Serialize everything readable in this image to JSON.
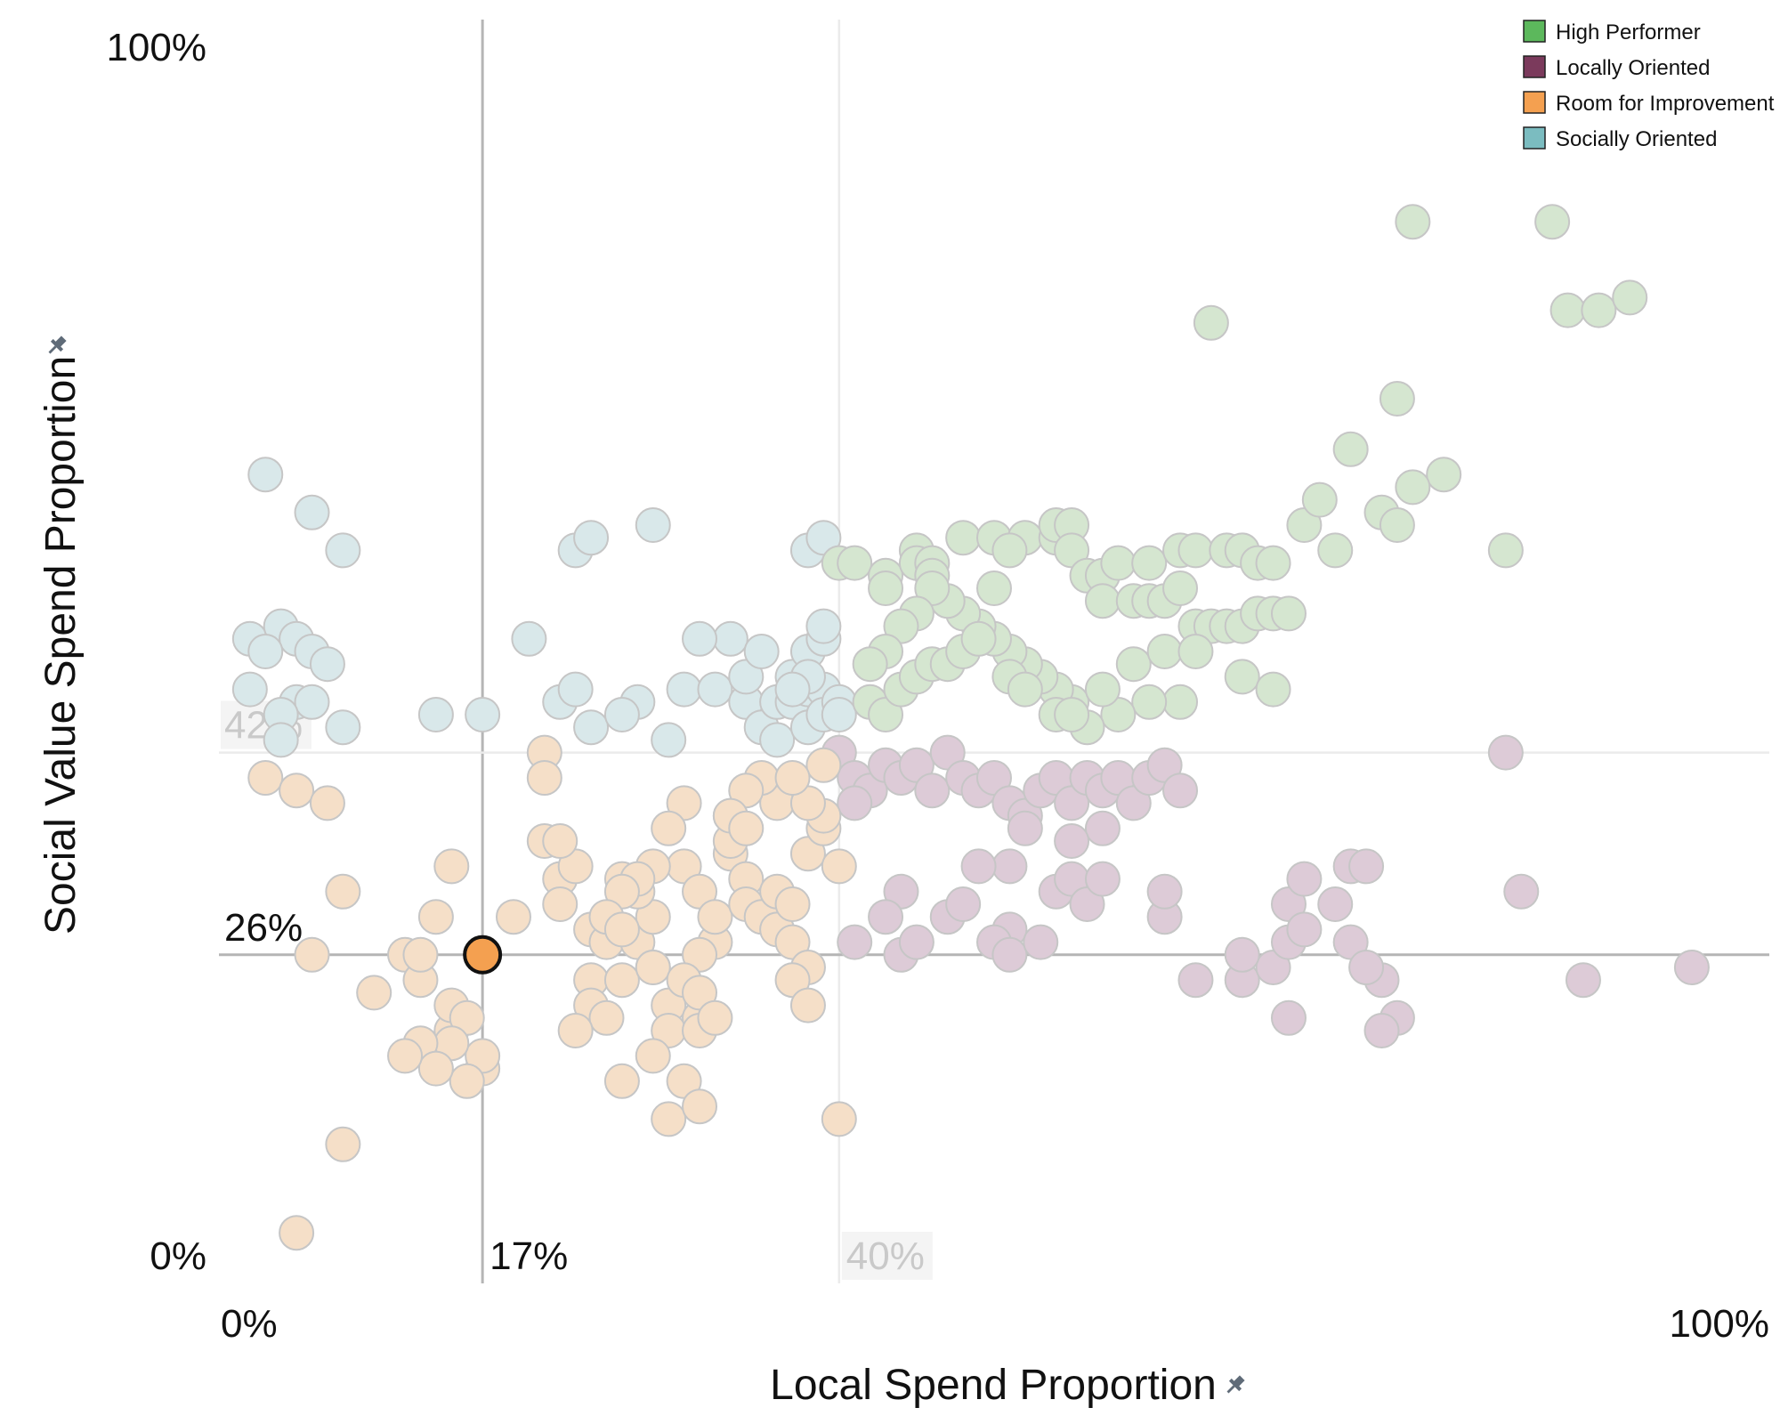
{
  "chart_data": {
    "type": "scatter",
    "xlabel": "Local Spend Proportion",
    "ylabel": "Social Value Spend Proportion",
    "xlim": [
      0,
      100
    ],
    "ylim": [
      0,
      100
    ],
    "x_ticks": [
      "0%",
      "100%"
    ],
    "y_ticks": [
      "0%",
      "100%"
    ],
    "pin_icon": "pin-icon",
    "reference_lines": [
      {
        "axis": "x",
        "value": 17,
        "label": "17%",
        "emphasis": "strong"
      },
      {
        "axis": "x",
        "value": 40,
        "label": "40%",
        "emphasis": "faint"
      },
      {
        "axis": "y",
        "value": 26,
        "label": "26%",
        "emphasis": "strong"
      },
      {
        "axis": "y",
        "value": 42,
        "label": "42%",
        "emphasis": "faint"
      }
    ],
    "highlight": {
      "x": 17,
      "y": 26,
      "category": "Room for Improvement"
    },
    "legend_position": "top-right",
    "categories": [
      {
        "name": "High Performer",
        "color": "#5cb85c",
        "faded": "#d5e6d0"
      },
      {
        "name": "Locally Oriented",
        "color": "#7b3a5c",
        "faded": "#ddcbd7"
      },
      {
        "name": "Room for Improvement",
        "color": "#f4a050",
        "faded": "#f5dfc8"
      },
      {
        "name": "Socially Oriented",
        "color": "#7bbcc0",
        "faded": "#d9e8ea"
      }
    ],
    "series": [
      {
        "name": "Socially Oriented",
        "points": [
          [
            3,
            64
          ],
          [
            6,
            61
          ],
          [
            8,
            58
          ],
          [
            2,
            51
          ],
          [
            4,
            52
          ],
          [
            5,
            51
          ],
          [
            3,
            50
          ],
          [
            6,
            50
          ],
          [
            7,
            49
          ],
          [
            2,
            47
          ],
          [
            5,
            46
          ],
          [
            6,
            46
          ],
          [
            4,
            45
          ],
          [
            8,
            44
          ],
          [
            4,
            43
          ],
          [
            14,
            45
          ],
          [
            17,
            45
          ],
          [
            20,
            51
          ],
          [
            22,
            46
          ],
          [
            23,
            47
          ],
          [
            24,
            44
          ],
          [
            27,
            46
          ],
          [
            23,
            58
          ],
          [
            24,
            59
          ],
          [
            28,
            60
          ],
          [
            26,
            45
          ],
          [
            30,
            47
          ],
          [
            29,
            43
          ],
          [
            32,
            47
          ],
          [
            33,
            51
          ],
          [
            31,
            51
          ],
          [
            34,
            46
          ],
          [
            34,
            48
          ],
          [
            35,
            50
          ],
          [
            35,
            44
          ],
          [
            36,
            43
          ],
          [
            36,
            46
          ],
          [
            37,
            46
          ],
          [
            37,
            48
          ],
          [
            38,
            47
          ],
          [
            39,
            47
          ],
          [
            38,
            44
          ],
          [
            39,
            45
          ],
          [
            40,
            46
          ],
          [
            40,
            45
          ],
          [
            38,
            50
          ],
          [
            39,
            51
          ],
          [
            39,
            52
          ],
          [
            38,
            58
          ],
          [
            39,
            59
          ],
          [
            38,
            48
          ],
          [
            37,
            47
          ]
        ]
      },
      {
        "name": "High Performer",
        "points": [
          [
            40,
            57
          ],
          [
            41,
            57
          ],
          [
            43,
            56
          ],
          [
            43,
            55
          ],
          [
            45,
            58
          ],
          [
            45,
            57
          ],
          [
            46,
            57
          ],
          [
            46,
            56
          ],
          [
            48,
            59
          ],
          [
            50,
            59
          ],
          [
            52,
            59
          ],
          [
            51,
            58
          ],
          [
            50,
            55
          ],
          [
            54,
            59
          ],
          [
            54,
            60
          ],
          [
            55,
            60
          ],
          [
            55,
            58
          ],
          [
            56,
            56
          ],
          [
            57,
            56
          ],
          [
            58,
            57
          ],
          [
            57,
            54
          ],
          [
            59,
            54
          ],
          [
            60,
            54
          ],
          [
            61,
            54
          ],
          [
            60,
            57
          ],
          [
            62,
            58
          ],
          [
            63,
            58
          ],
          [
            65,
            58
          ],
          [
            66,
            58
          ],
          [
            67,
            57
          ],
          [
            68,
            57
          ],
          [
            62,
            55
          ],
          [
            63,
            52
          ],
          [
            64,
            52
          ],
          [
            65,
            52
          ],
          [
            66,
            52
          ],
          [
            67,
            53
          ],
          [
            68,
            53
          ],
          [
            69,
            53
          ],
          [
            62,
            46
          ],
          [
            60,
            46
          ],
          [
            58,
            45
          ],
          [
            56,
            44
          ],
          [
            55,
            46
          ],
          [
            54,
            47
          ],
          [
            53,
            48
          ],
          [
            52,
            49
          ],
          [
            51,
            50
          ],
          [
            50,
            51
          ],
          [
            49,
            52
          ],
          [
            48,
            53
          ],
          [
            47,
            54
          ],
          [
            46,
            55
          ],
          [
            45,
            53
          ],
          [
            44,
            52
          ],
          [
            43,
            50
          ],
          [
            42,
            49
          ],
          [
            42,
            46
          ],
          [
            43,
            45
          ],
          [
            44,
            47
          ],
          [
            45,
            48
          ],
          [
            46,
            49
          ],
          [
            47,
            49
          ],
          [
            48,
            50
          ],
          [
            49,
            51
          ],
          [
            51,
            48
          ],
          [
            52,
            47
          ],
          [
            54,
            45
          ],
          [
            55,
            45
          ],
          [
            57,
            47
          ],
          [
            59,
            49
          ],
          [
            61,
            50
          ],
          [
            63,
            50
          ],
          [
            66,
            48
          ],
          [
            68,
            47
          ],
          [
            70,
            60
          ],
          [
            71,
            62
          ],
          [
            72,
            58
          ],
          [
            75,
            61
          ],
          [
            73,
            66
          ],
          [
            64,
            76
          ],
          [
            77,
            84
          ],
          [
            76,
            70
          ],
          [
            86,
            84
          ],
          [
            87,
            77
          ],
          [
            89,
            77
          ],
          [
            91,
            78
          ],
          [
            83,
            58
          ],
          [
            79,
            64
          ],
          [
            77,
            63
          ],
          [
            76,
            60
          ]
        ]
      },
      {
        "name": "Locally Oriented",
        "points": [
          [
            40,
            42
          ],
          [
            41,
            40
          ],
          [
            42,
            39
          ],
          [
            41,
            38
          ],
          [
            43,
            41
          ],
          [
            44,
            40
          ],
          [
            45,
            41
          ],
          [
            46,
            39
          ],
          [
            47,
            42
          ],
          [
            48,
            40
          ],
          [
            49,
            39
          ],
          [
            50,
            40
          ],
          [
            51,
            38
          ],
          [
            52,
            37
          ],
          [
            53,
            39
          ],
          [
            54,
            40
          ],
          [
            55,
            38
          ],
          [
            56,
            40
          ],
          [
            57,
            39
          ],
          [
            58,
            40
          ],
          [
            59,
            38
          ],
          [
            60,
            40
          ],
          [
            61,
            41
          ],
          [
            62,
            39
          ],
          [
            57,
            36
          ],
          [
            55,
            35
          ],
          [
            52,
            36
          ],
          [
            51,
            33
          ],
          [
            54,
            31
          ],
          [
            55,
            32
          ],
          [
            44,
            31
          ],
          [
            43,
            29
          ],
          [
            47,
            29
          ],
          [
            49,
            33
          ],
          [
            48,
            30
          ],
          [
            51,
            28
          ],
          [
            50,
            27
          ],
          [
            41,
            27
          ],
          [
            44,
            26
          ],
          [
            45,
            27
          ],
          [
            51,
            26
          ],
          [
            53,
            27
          ],
          [
            56,
            30
          ],
          [
            57,
            32
          ],
          [
            61,
            29
          ],
          [
            61,
            31
          ],
          [
            63,
            24
          ],
          [
            66,
            24
          ],
          [
            68,
            25
          ],
          [
            69,
            30
          ],
          [
            70,
            32
          ],
          [
            72,
            30
          ],
          [
            73,
            33
          ],
          [
            74,
            33
          ],
          [
            73,
            27
          ],
          [
            75,
            24
          ],
          [
            74,
            25
          ],
          [
            76,
            21
          ],
          [
            75,
            20
          ],
          [
            69,
            21
          ],
          [
            66,
            26
          ],
          [
            69,
            27
          ],
          [
            70,
            28
          ],
          [
            84,
            31
          ],
          [
            83,
            42
          ],
          [
            88,
            24
          ],
          [
            95,
            25
          ]
        ]
      },
      {
        "name": "Room for Improvement",
        "points": [
          [
            3,
            40
          ],
          [
            5,
            39
          ],
          [
            7,
            38
          ],
          [
            8,
            31
          ],
          [
            6,
            26
          ],
          [
            12,
            26
          ],
          [
            13,
            24
          ],
          [
            15,
            20
          ],
          [
            15,
            22
          ],
          [
            16,
            21
          ],
          [
            17,
            17
          ],
          [
            17,
            18
          ],
          [
            16,
            16
          ],
          [
            15,
            19
          ],
          [
            13,
            19
          ],
          [
            14,
            17
          ],
          [
            12,
            18
          ],
          [
            10,
            23
          ],
          [
            13,
            26
          ],
          [
            14,
            29
          ],
          [
            15,
            33
          ],
          [
            17,
            26
          ],
          [
            19,
            29
          ],
          [
            21,
            35
          ],
          [
            22,
            32
          ],
          [
            22,
            30
          ],
          [
            23,
            33
          ],
          [
            22,
            35
          ],
          [
            24,
            24
          ],
          [
            24,
            28
          ],
          [
            25,
            27
          ],
          [
            26,
            24
          ],
          [
            24,
            22
          ],
          [
            25,
            21
          ],
          [
            26,
            32
          ],
          [
            27,
            27
          ],
          [
            28,
            29
          ],
          [
            27,
            31
          ],
          [
            28,
            25
          ],
          [
            29,
            22
          ],
          [
            30,
            33
          ],
          [
            31,
            31
          ],
          [
            32,
            27
          ],
          [
            32,
            29
          ],
          [
            33,
            34
          ],
          [
            33,
            37
          ],
          [
            33,
            35
          ],
          [
            34,
            32
          ],
          [
            34,
            30
          ],
          [
            35,
            29
          ],
          [
            36,
            31
          ],
          [
            36,
            28
          ],
          [
            37,
            27
          ],
          [
            38,
            25
          ],
          [
            37,
            24
          ],
          [
            38,
            22
          ],
          [
            37,
            30
          ],
          [
            38,
            34
          ],
          [
            39,
            36
          ],
          [
            39,
            37
          ],
          [
            40,
            33
          ],
          [
            36,
            38
          ],
          [
            35,
            40
          ],
          [
            34,
            39
          ],
          [
            30,
            38
          ],
          [
            29,
            36
          ],
          [
            28,
            33
          ],
          [
            27,
            32
          ],
          [
            26,
            31
          ],
          [
            25,
            29
          ],
          [
            26,
            28
          ],
          [
            28,
            25
          ],
          [
            31,
            26
          ],
          [
            30,
            24
          ],
          [
            29,
            20
          ],
          [
            31,
            21
          ],
          [
            31,
            23
          ],
          [
            21,
            42
          ],
          [
            21,
            40
          ],
          [
            23,
            20
          ],
          [
            28,
            18
          ],
          [
            26,
            16
          ],
          [
            31,
            20
          ],
          [
            32,
            21
          ],
          [
            30,
            16
          ],
          [
            29,
            13
          ],
          [
            31,
            14
          ],
          [
            40,
            13
          ],
          [
            8,
            11
          ],
          [
            5,
            4
          ],
          [
            33,
            37
          ],
          [
            34,
            36
          ],
          [
            38,
            38
          ],
          [
            39,
            41
          ],
          [
            37,
            40
          ]
        ]
      }
    ]
  },
  "legend": {
    "items": [
      "High Performer",
      "Locally Oriented",
      "Room for Improvement",
      "Socially Oriented"
    ]
  }
}
